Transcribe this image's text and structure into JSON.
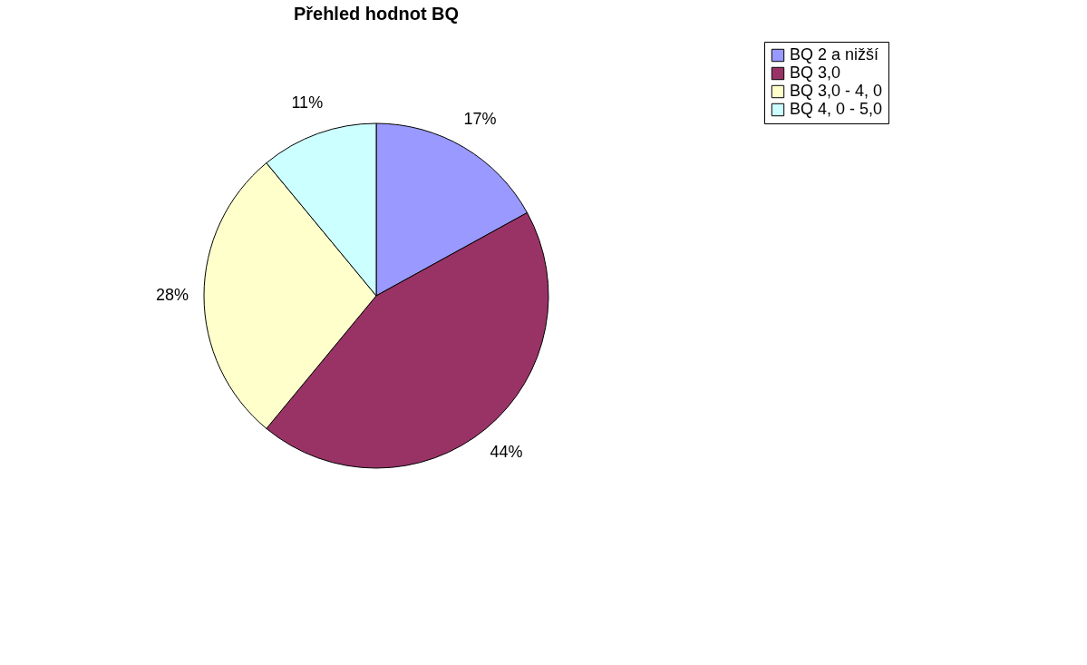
{
  "chart_data": {
    "type": "pie",
    "title": "Přehled hodnot BQ",
    "categories": [
      "BQ 2 a nižší",
      "BQ 3,0",
      "BQ 3,0 - 4, 0",
      "BQ 4, 0 - 5,0"
    ],
    "values": [
      17,
      44,
      28,
      11
    ],
    "colors": [
      "#9999ff",
      "#993366",
      "#ffffcc",
      "#ccffff"
    ],
    "value_labels": [
      "17%",
      "44%",
      "28%",
      "11%"
    ],
    "legend": "right"
  }
}
